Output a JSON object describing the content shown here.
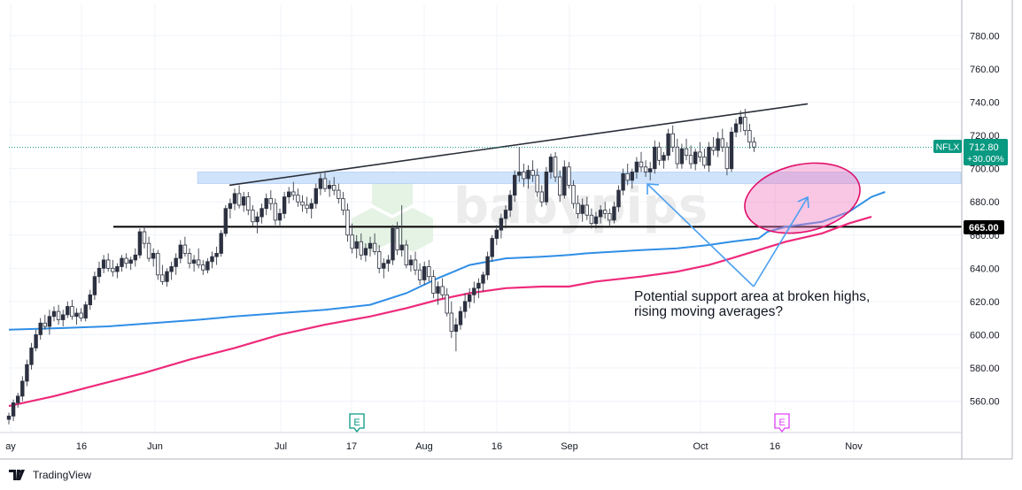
{
  "watermark": "babypips",
  "chart_data": {
    "type": "candlestick",
    "symbol": "NFLX",
    "last_price": "712.80",
    "change_pct": "+30.00%",
    "level_label": "665.00",
    "ylim": [
      540,
      795
    ],
    "yticks": [
      "560.00",
      "580.00",
      "600.00",
      "620.00",
      "640.00",
      "660.00",
      "680.00",
      "700.00",
      "720.00",
      "740.00",
      "760.00",
      "780.00"
    ],
    "xtick_labels": [
      "May",
      "16",
      "Jun",
      "Jul",
      "17",
      "Aug",
      "16",
      "Sep",
      "Oct",
      "16",
      "Nov"
    ],
    "earnings_markers": [
      {
        "letter": "E",
        "color": "#089981",
        "date": "Jul 18"
      },
      {
        "letter": "E",
        "color": "#e040fb",
        "date": "Oct 17"
      }
    ],
    "horizontal_line": {
      "price": 665.0,
      "color": "#000000"
    },
    "support_zone": {
      "from": 691,
      "to": 698,
      "color": "#cfe3fb"
    },
    "trendline": {
      "from": [
        "May 29",
        690
      ],
      "to": [
        "Oct 25",
        739
      ]
    },
    "moving_average_100": {
      "color": "#2f8ee6",
      "points": [
        [
          0,
          603
        ],
        [
          12,
          604
        ],
        [
          22,
          605
        ],
        [
          32,
          607
        ],
        [
          42,
          609
        ],
        [
          50,
          611
        ],
        [
          60,
          613
        ],
        [
          70,
          615
        ],
        [
          80,
          618
        ],
        [
          88,
          625
        ],
        [
          95,
          634
        ],
        [
          102,
          642
        ],
        [
          110,
          646
        ],
        [
          118,
          647
        ],
        [
          124,
          648
        ],
        [
          128,
          649
        ],
        [
          140,
          651
        ],
        [
          148,
          652
        ],
        [
          155,
          654
        ],
        [
          160,
          656
        ],
        [
          166,
          658
        ],
        [
          168,
          662
        ],
        [
          172,
          665
        ],
        [
          180,
          668
        ],
        [
          186,
          674
        ],
        [
          191,
          683
        ],
        [
          194,
          686
        ]
      ]
    },
    "moving_average_200": {
      "color": "#ee2a7b",
      "points": [
        [
          0,
          557
        ],
        [
          10,
          563
        ],
        [
          20,
          570
        ],
        [
          30,
          577
        ],
        [
          40,
          585
        ],
        [
          50,
          592
        ],
        [
          60,
          600
        ],
        [
          70,
          606
        ],
        [
          80,
          611
        ],
        [
          88,
          616
        ],
        [
          95,
          621
        ],
        [
          102,
          625
        ],
        [
          110,
          628
        ],
        [
          118,
          629
        ],
        [
          124,
          629
        ],
        [
          130,
          632
        ],
        [
          140,
          635
        ],
        [
          148,
          638
        ],
        [
          155,
          642
        ],
        [
          160,
          646
        ],
        [
          166,
          651
        ],
        [
          172,
          656
        ],
        [
          180,
          661
        ],
        [
          186,
          667
        ],
        [
          191,
          671
        ]
      ]
    },
    "candles": [
      [
        0,
        549,
        553,
        546,
        551
      ],
      [
        1,
        551,
        561,
        548,
        559
      ],
      [
        2,
        559,
        565,
        556,
        563
      ],
      [
        3,
        563,
        575,
        560,
        572
      ],
      [
        4,
        572,
        585,
        569,
        582
      ],
      [
        5,
        582,
        595,
        579,
        592
      ],
      [
        6,
        592,
        603,
        590,
        600
      ],
      [
        7,
        600,
        610,
        597,
        607
      ],
      [
        8,
        607,
        612,
        603,
        605
      ],
      [
        9,
        605,
        615,
        600,
        611
      ],
      [
        10,
        611,
        617,
        608,
        614
      ],
      [
        11,
        614,
        618,
        606,
        609
      ],
      [
        12,
        609,
        615,
        605,
        612
      ],
      [
        13,
        612,
        620,
        610,
        617
      ],
      [
        14,
        617,
        621,
        609,
        611
      ],
      [
        15,
        611,
        616,
        606,
        613
      ],
      [
        16,
        613,
        616,
        608,
        610
      ],
      [
        17,
        610,
        620,
        608,
        618
      ],
      [
        18,
        618,
        627,
        615,
        624
      ],
      [
        19,
        624,
        638,
        621,
        635
      ],
      [
        20,
        635,
        644,
        631,
        640
      ],
      [
        21,
        640,
        648,
        637,
        645
      ],
      [
        22,
        645,
        649,
        638,
        640
      ],
      [
        23,
        640,
        645,
        635,
        638
      ],
      [
        24,
        638,
        643,
        634,
        641
      ],
      [
        25,
        641,
        648,
        638,
        646
      ],
      [
        26,
        646,
        649,
        640,
        643
      ],
      [
        27,
        643,
        647,
        639,
        645
      ],
      [
        28,
        645,
        652,
        641,
        648
      ],
      [
        29,
        648,
        664,
        646,
        662
      ],
      [
        30,
        662,
        665,
        652,
        655
      ],
      [
        31,
        655,
        659,
        644,
        646
      ],
      [
        32,
        646,
        652,
        641,
        649
      ],
      [
        33,
        649,
        651,
        633,
        636
      ],
      [
        34,
        636,
        642,
        630,
        632
      ],
      [
        35,
        632,
        640,
        629,
        638
      ],
      [
        36,
        638,
        644,
        633,
        641
      ],
      [
        37,
        641,
        649,
        636,
        646
      ],
      [
        38,
        646,
        657,
        643,
        654
      ],
      [
        39,
        654,
        659,
        647,
        649
      ],
      [
        40,
        649,
        652,
        640,
        643
      ],
      [
        41,
        643,
        648,
        638,
        645
      ],
      [
        42,
        645,
        652,
        640,
        642
      ],
      [
        43,
        642,
        645,
        636,
        639
      ],
      [
        44,
        639,
        646,
        637,
        644
      ],
      [
        45,
        644,
        650,
        640,
        647
      ],
      [
        46,
        647,
        653,
        642,
        649
      ],
      [
        47,
        649,
        663,
        647,
        661
      ],
      [
        48,
        661,
        678,
        659,
        676
      ],
      [
        49,
        676,
        682,
        670,
        679
      ],
      [
        50,
        679,
        688,
        675,
        685
      ],
      [
        51,
        685,
        690,
        676,
        678
      ],
      [
        52,
        678,
        686,
        674,
        683
      ],
      [
        53,
        683,
        686,
        672,
        675
      ],
      [
        54,
        675,
        678,
        665,
        668
      ],
      [
        55,
        668,
        674,
        661,
        671
      ],
      [
        56,
        671,
        679,
        667,
        676
      ],
      [
        57,
        676,
        685,
        672,
        682
      ],
      [
        58,
        682,
        687,
        675,
        679
      ],
      [
        59,
        679,
        682,
        666,
        669
      ],
      [
        60,
        669,
        676,
        665,
        673
      ],
      [
        61,
        673,
        686,
        670,
        683
      ],
      [
        62,
        683,
        689,
        679,
        686
      ],
      [
        63,
        686,
        692,
        681,
        684
      ],
      [
        64,
        684,
        688,
        677,
        680
      ],
      [
        65,
        680,
        684,
        674,
        678
      ],
      [
        66,
        678,
        683,
        673,
        676
      ],
      [
        67,
        676,
        682,
        670,
        679
      ],
      [
        68,
        679,
        691,
        676,
        688
      ],
      [
        69,
        688,
        697,
        684,
        694
      ],
      [
        70,
        694,
        698,
        686,
        688
      ],
      [
        71,
        688,
        693,
        683,
        690
      ],
      [
        72,
        690,
        695,
        684,
        687
      ],
      [
        73,
        687,
        691,
        679,
        682
      ],
      [
        74,
        682,
        686,
        672,
        675
      ],
      [
        75,
        675,
        679,
        656,
        660
      ],
      [
        76,
        660,
        667,
        649,
        652
      ],
      [
        77,
        652,
        660,
        646,
        656
      ],
      [
        78,
        656,
        661,
        645,
        648
      ],
      [
        79,
        648,
        655,
        644,
        652
      ],
      [
        80,
        652,
        659,
        647,
        655
      ],
      [
        81,
        655,
        661,
        648,
        650
      ],
      [
        82,
        650,
        654,
        637,
        640
      ],
      [
        83,
        640,
        646,
        634,
        643
      ],
      [
        84,
        643,
        648,
        638,
        645
      ],
      [
        85,
        645,
        666,
        642,
        664
      ],
      [
        86,
        664,
        668,
        648,
        651
      ],
      [
        87,
        651,
        678,
        647,
        654
      ],
      [
        88,
        654,
        657,
        640,
        642
      ],
      [
        89,
        642,
        648,
        638,
        645
      ],
      [
        90,
        645,
        650,
        636,
        639
      ],
      [
        91,
        639,
        643,
        630,
        633
      ],
      [
        92,
        633,
        644,
        630,
        641
      ],
      [
        93,
        641,
        645,
        632,
        635
      ],
      [
        94,
        635,
        639,
        622,
        625
      ],
      [
        95,
        625,
        632,
        618,
        629
      ],
      [
        96,
        629,
        634,
        622,
        624
      ],
      [
        97,
        624,
        628,
        611,
        613
      ],
      [
        98,
        613,
        620,
        598,
        602
      ],
      [
        99,
        602,
        610,
        590,
        606
      ],
      [
        100,
        606,
        617,
        603,
        614
      ],
      [
        101,
        614,
        625,
        610,
        620
      ],
      [
        102,
        620,
        628,
        616,
        624
      ],
      [
        103,
        624,
        632,
        619,
        628
      ],
      [
        104,
        628,
        634,
        622,
        631
      ],
      [
        105,
        631,
        638,
        626,
        636
      ],
      [
        106,
        636,
        650,
        633,
        647
      ],
      [
        107,
        647,
        660,
        644,
        658
      ],
      [
        108,
        658,
        666,
        654,
        663
      ],
      [
        109,
        663,
        673,
        658,
        670
      ],
      [
        110,
        670,
        678,
        664,
        675
      ],
      [
        111,
        675,
        687,
        671,
        684
      ],
      [
        112,
        684,
        699,
        680,
        696
      ],
      [
        113,
        696,
        713,
        692,
        698
      ],
      [
        114,
        698,
        703,
        689,
        694
      ],
      [
        115,
        694,
        702,
        688,
        699
      ],
      [
        116,
        699,
        705,
        692,
        696
      ],
      [
        117,
        696,
        700,
        683,
        686
      ],
      [
        118,
        686,
        690,
        677,
        680
      ],
      [
        119,
        680,
        701,
        678,
        698
      ],
      [
        120,
        698,
        709,
        694,
        707
      ],
      [
        121,
        707,
        710,
        692,
        695
      ],
      [
        122,
        695,
        699,
        680,
        684
      ],
      [
        123,
        684,
        705,
        682,
        701
      ],
      [
        124,
        701,
        704,
        688,
        690
      ],
      [
        125,
        690,
        693,
        676,
        679
      ],
      [
        126,
        679,
        684,
        670,
        673
      ],
      [
        127,
        673,
        682,
        668,
        678
      ],
      [
        128,
        678,
        683,
        669,
        672
      ],
      [
        129,
        672,
        676,
        664,
        667
      ],
      [
        130,
        667,
        674,
        664,
        671
      ],
      [
        131,
        671,
        678,
        667,
        675
      ],
      [
        132,
        675,
        680,
        670,
        673
      ],
      [
        133,
        673,
        676,
        665,
        669
      ],
      [
        134,
        669,
        680,
        667,
        677
      ],
      [
        135,
        677,
        690,
        674,
        687
      ],
      [
        136,
        687,
        700,
        684,
        697
      ],
      [
        137,
        697,
        703,
        690,
        693
      ],
      [
        138,
        693,
        700,
        688,
        698
      ],
      [
        139,
        698,
        707,
        694,
        704
      ],
      [
        140,
        704,
        710,
        698,
        701
      ],
      [
        141,
        701,
        705,
        695,
        698
      ],
      [
        142,
        698,
        704,
        693,
        700
      ],
      [
        143,
        700,
        717,
        697,
        713
      ],
      [
        144,
        713,
        716,
        702,
        705
      ],
      [
        145,
        705,
        710,
        700,
        708
      ],
      [
        146,
        708,
        724,
        705,
        721
      ],
      [
        147,
        721,
        726,
        710,
        713
      ],
      [
        148,
        713,
        718,
        700,
        703
      ],
      [
        149,
        703,
        715,
        700,
        712
      ],
      [
        150,
        712,
        718,
        705,
        708
      ],
      [
        151,
        708,
        714,
        700,
        703
      ],
      [
        152,
        703,
        712,
        699,
        710
      ],
      [
        153,
        710,
        716,
        704,
        707
      ],
      [
        154,
        707,
        712,
        700,
        702
      ],
      [
        155,
        702,
        716,
        698,
        713
      ],
      [
        156,
        713,
        719,
        708,
        711
      ],
      [
        157,
        711,
        722,
        707,
        718
      ],
      [
        158,
        718,
        724,
        710,
        713
      ],
      [
        159,
        713,
        716,
        696,
        700
      ],
      [
        160,
        700,
        725,
        698,
        722
      ],
      [
        161,
        722,
        730,
        719,
        727
      ],
      [
        162,
        727,
        735,
        722,
        731
      ],
      [
        163,
        731,
        736,
        720,
        723
      ],
      [
        164,
        723,
        727,
        712,
        716
      ],
      [
        165,
        716,
        719,
        710,
        713
      ]
    ]
  }
}
